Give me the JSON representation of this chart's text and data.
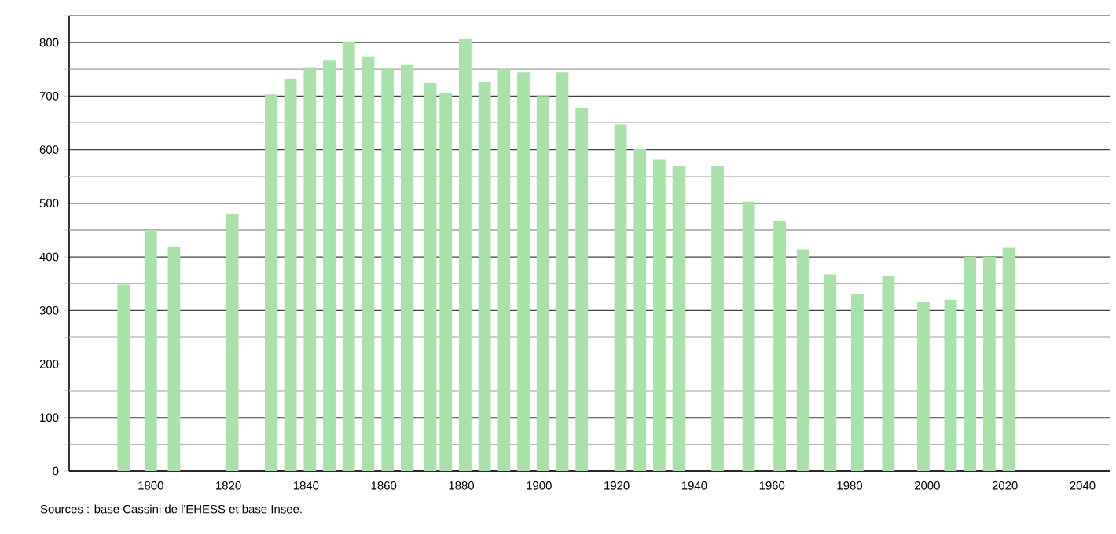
{
  "chart_data": {
    "type": "bar",
    "x": [
      1793,
      1800,
      1806,
      1821,
      1831,
      1836,
      1841,
      1846,
      1851,
      1856,
      1861,
      1866,
      1872,
      1876,
      1881,
      1886,
      1891,
      1896,
      1901,
      1906,
      1911,
      1921,
      1926,
      1931,
      1936,
      1946,
      1954,
      1962,
      1968,
      1975,
      1982,
      1990,
      1999,
      2006,
      2011,
      2016,
      2021
    ],
    "values": [
      348,
      450,
      418,
      480,
      703,
      732,
      754,
      766,
      802,
      774,
      751,
      758,
      724,
      705,
      806,
      726,
      750,
      744,
      700,
      744,
      678,
      647,
      601,
      581,
      570,
      570,
      503,
      467,
      414,
      367,
      331,
      365,
      315,
      320,
      400,
      400,
      417
    ],
    "color": "#a9e2a9",
    "xlim": [
      1779,
      2047
    ],
    "ylim": [
      0,
      850
    ],
    "xticks": [
      1800,
      1820,
      1840,
      1860,
      1880,
      1900,
      1920,
      1940,
      1960,
      1980,
      2000,
      2020,
      2040
    ],
    "yticks": [
      0,
      {
        "value": 50,
        "label": null
      },
      100,
      {
        "value": 150,
        "label": null
      },
      200,
      {
        "value": 250,
        "label": null
      },
      300,
      {
        "value": 350,
        "label": null
      },
      400,
      {
        "value": 450,
        "label": null
      },
      500,
      {
        "value": 550,
        "label": null
      },
      600,
      {
        "value": 650,
        "label": null
      },
      700,
      {
        "value": 750,
        "label": null
      },
      800,
      {
        "value": 850,
        "label": null
      }
    ],
    "grid": "y",
    "annotations": [
      "Sources : base Cassini de l'EHESS et base Insee."
    ]
  }
}
